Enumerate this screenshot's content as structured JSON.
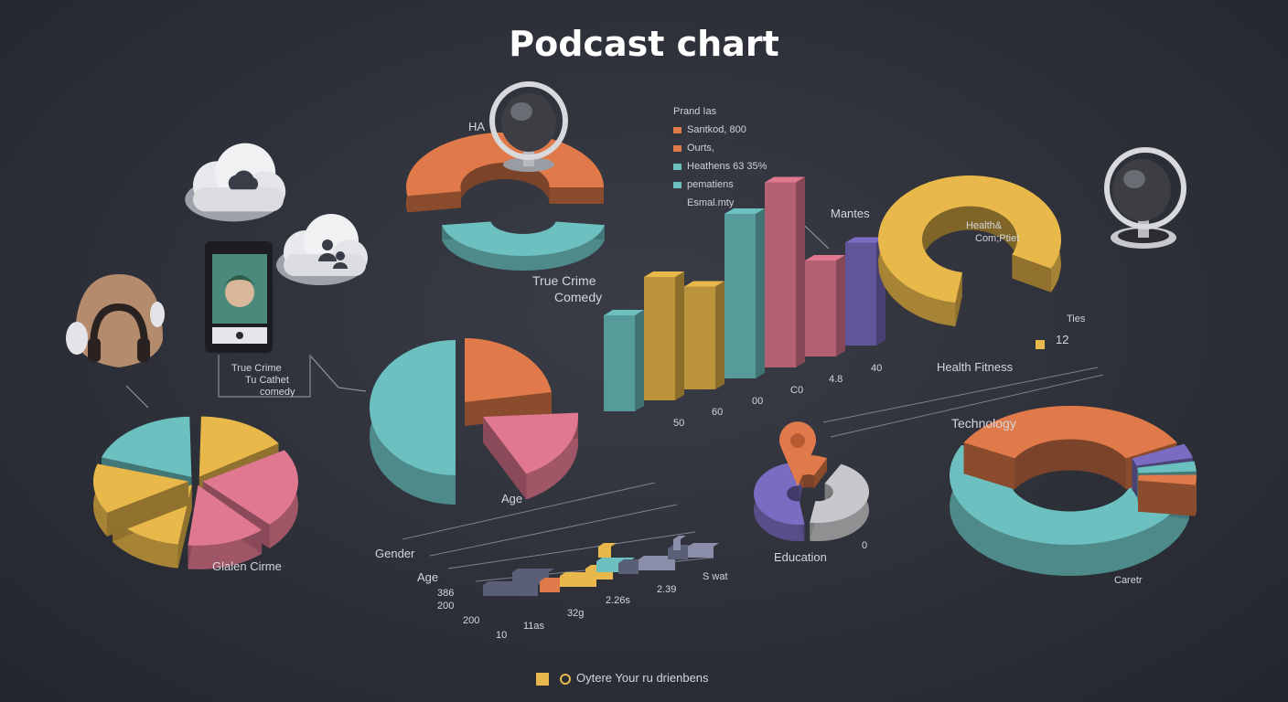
{
  "title": "Podcast chart",
  "colors": {
    "orange": "#e07a4a",
    "teal": "#6cc0c0",
    "yellow": "#e8b84a",
    "pink": "#e07890",
    "purple": "#7a6cc0",
    "slate": "#5a5f78",
    "grey": "#c8c8cc"
  },
  "icons": [
    "cloud-icon",
    "chat-icon",
    "phone-icon",
    "headphones-icon",
    "microphone-icon",
    "location-pin-icon"
  ],
  "labels": {
    "ha": "HA",
    "true_crime_comedy": [
      "True Crime",
      "Comedy"
    ],
    "callout": [
      "True Crime",
      "Tu Cathet",
      "comedy"
    ],
    "mantes": "Mantes",
    "health_comp": [
      "Health&",
      "Com;Ptiet"
    ],
    "ties": "Ties",
    "health_fitness": "Health Fitness",
    "health_fitness_value": "12",
    "technology": "Technology",
    "age_pie": "Age",
    "gender": "Gender",
    "age_bar": "Age",
    "education": "Education",
    "education_value": "0",
    "career": "Caretr",
    "gluten_crime": "Glalen Cirme",
    "bar_axis": [
      "50",
      "60",
      "00",
      "C0",
      "4.8",
      "40"
    ],
    "timeline_y": [
      "Age",
      "386",
      "200"
    ],
    "timeline_x": [
      "10",
      "11as",
      "32g",
      "2.26s",
      "2.39",
      "S wat"
    ]
  },
  "legend": {
    "title": "Prand Ias",
    "items": [
      {
        "label": "Santkod, 800",
        "color": "#e07a4a"
      },
      {
        "label": "Ourts,",
        "color": "#e07a4a"
      },
      {
        "label": "Heathens 63 35%",
        "color": "#6cc0c0"
      },
      {
        "label": "pematiens",
        "color": "#6cc0c0"
      },
      {
        "label": "Esmal.mty",
        "color": "#e8b84a"
      }
    ]
  },
  "footer": "Oytere Your ru drienbens",
  "chart_data": [
    {
      "type": "pie",
      "name": "top-center",
      "slices": [
        {
          "label": "orange",
          "value": 62
        },
        {
          "label": "teal",
          "value": 38
        }
      ]
    },
    {
      "type": "bar",
      "name": "center-bars",
      "values": [
        7,
        9,
        7.5,
        12,
        13.5,
        7,
        7.5
      ],
      "colors": [
        "teal",
        "yellow",
        "yellow",
        "teal",
        "pink",
        "pink",
        "purple"
      ],
      "ylim": [
        0,
        14
      ]
    },
    {
      "type": "pie",
      "name": "right-yellow",
      "slices": [
        {
          "label": "Health & Comp",
          "value": 100
        }
      ]
    },
    {
      "type": "pie",
      "name": "left-pie",
      "slices": [
        {
          "value": 20
        },
        {
          "value": 16
        },
        {
          "value": 22
        },
        {
          "value": 14
        },
        {
          "value": 14
        },
        {
          "value": 14
        }
      ]
    },
    {
      "type": "pie",
      "name": "center-pie",
      "slices": [
        {
          "label": "teal",
          "value": 55
        },
        {
          "label": "orange",
          "value": 25
        },
        {
          "label": "pink",
          "value": 20
        }
      ]
    },
    {
      "type": "pie",
      "name": "education-pie",
      "slices": [
        {
          "label": "purple",
          "value": 45
        },
        {
          "label": "grey",
          "value": 35
        },
        {
          "label": "orange",
          "value": 20
        }
      ]
    },
    {
      "type": "pie",
      "name": "career-donut",
      "slices": [
        {
          "label": "teal",
          "value": 55
        },
        {
          "label": "orange",
          "value": 35
        },
        {
          "label": "purple",
          "value": 4
        },
        {
          "label": "teal",
          "value": 3
        },
        {
          "label": "orange",
          "value": 3
        }
      ]
    },
    {
      "type": "bar",
      "name": "timeline",
      "values": [
        3,
        2,
        4,
        5,
        3,
        6,
        4,
        2,
        3
      ]
    }
  ]
}
